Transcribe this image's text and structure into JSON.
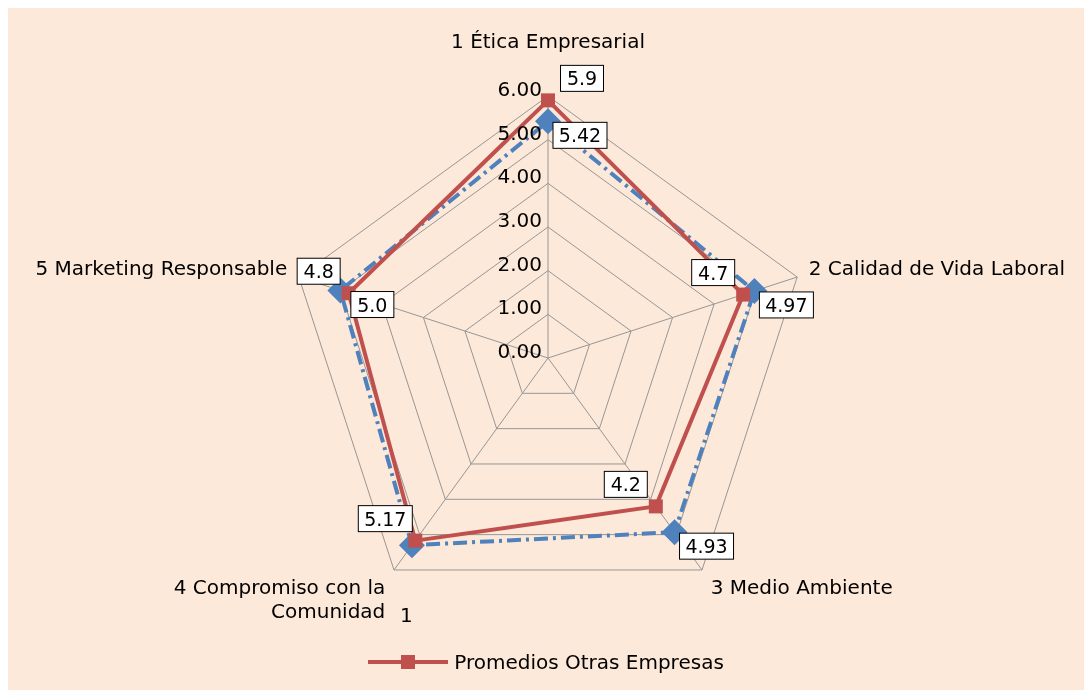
{
  "chart_data": {
    "type": "radar",
    "categories": [
      "1 Ética Empresarial",
      "2 Calidad de Vida Laboral",
      "3 Medio Ambiente",
      "4 Compromiso con la Comunidad",
      "5 Marketing Responsable"
    ],
    "series": [
      {
        "color": "#4f81bd",
        "line_style": "dashed",
        "marker": "diamond",
        "values": [
          5.42,
          4.97,
          4.93,
          5.3,
          5.0
        ],
        "value_labels": [
          "5.42",
          "4.97",
          "4.93",
          null,
          "5.0"
        ]
      },
      {
        "name": "Promedios Otras Empresas",
        "color": "#c0504d",
        "line_style": "solid",
        "marker": "square",
        "values": [
          5.9,
          4.7,
          4.2,
          5.17,
          4.8
        ],
        "value_labels": [
          "5.9",
          "4.7",
          "4.2",
          "5.17",
          "4.8"
        ]
      }
    ],
    "ylim": [
      0,
      6
    ],
    "yticks": [
      {
        "value": 0,
        "label": "0.00"
      },
      {
        "value": 1,
        "label": "1.00"
      },
      {
        "value": 2,
        "label": "2.00"
      },
      {
        "value": 3,
        "label": "3.00"
      },
      {
        "value": 4,
        "label": "4.00"
      },
      {
        "value": 5,
        "label": "5.00"
      },
      {
        "value": 6,
        "label": "6.00"
      }
    ],
    "grid": true,
    "legend": "bottom",
    "annotations": [
      "1"
    ]
  }
}
